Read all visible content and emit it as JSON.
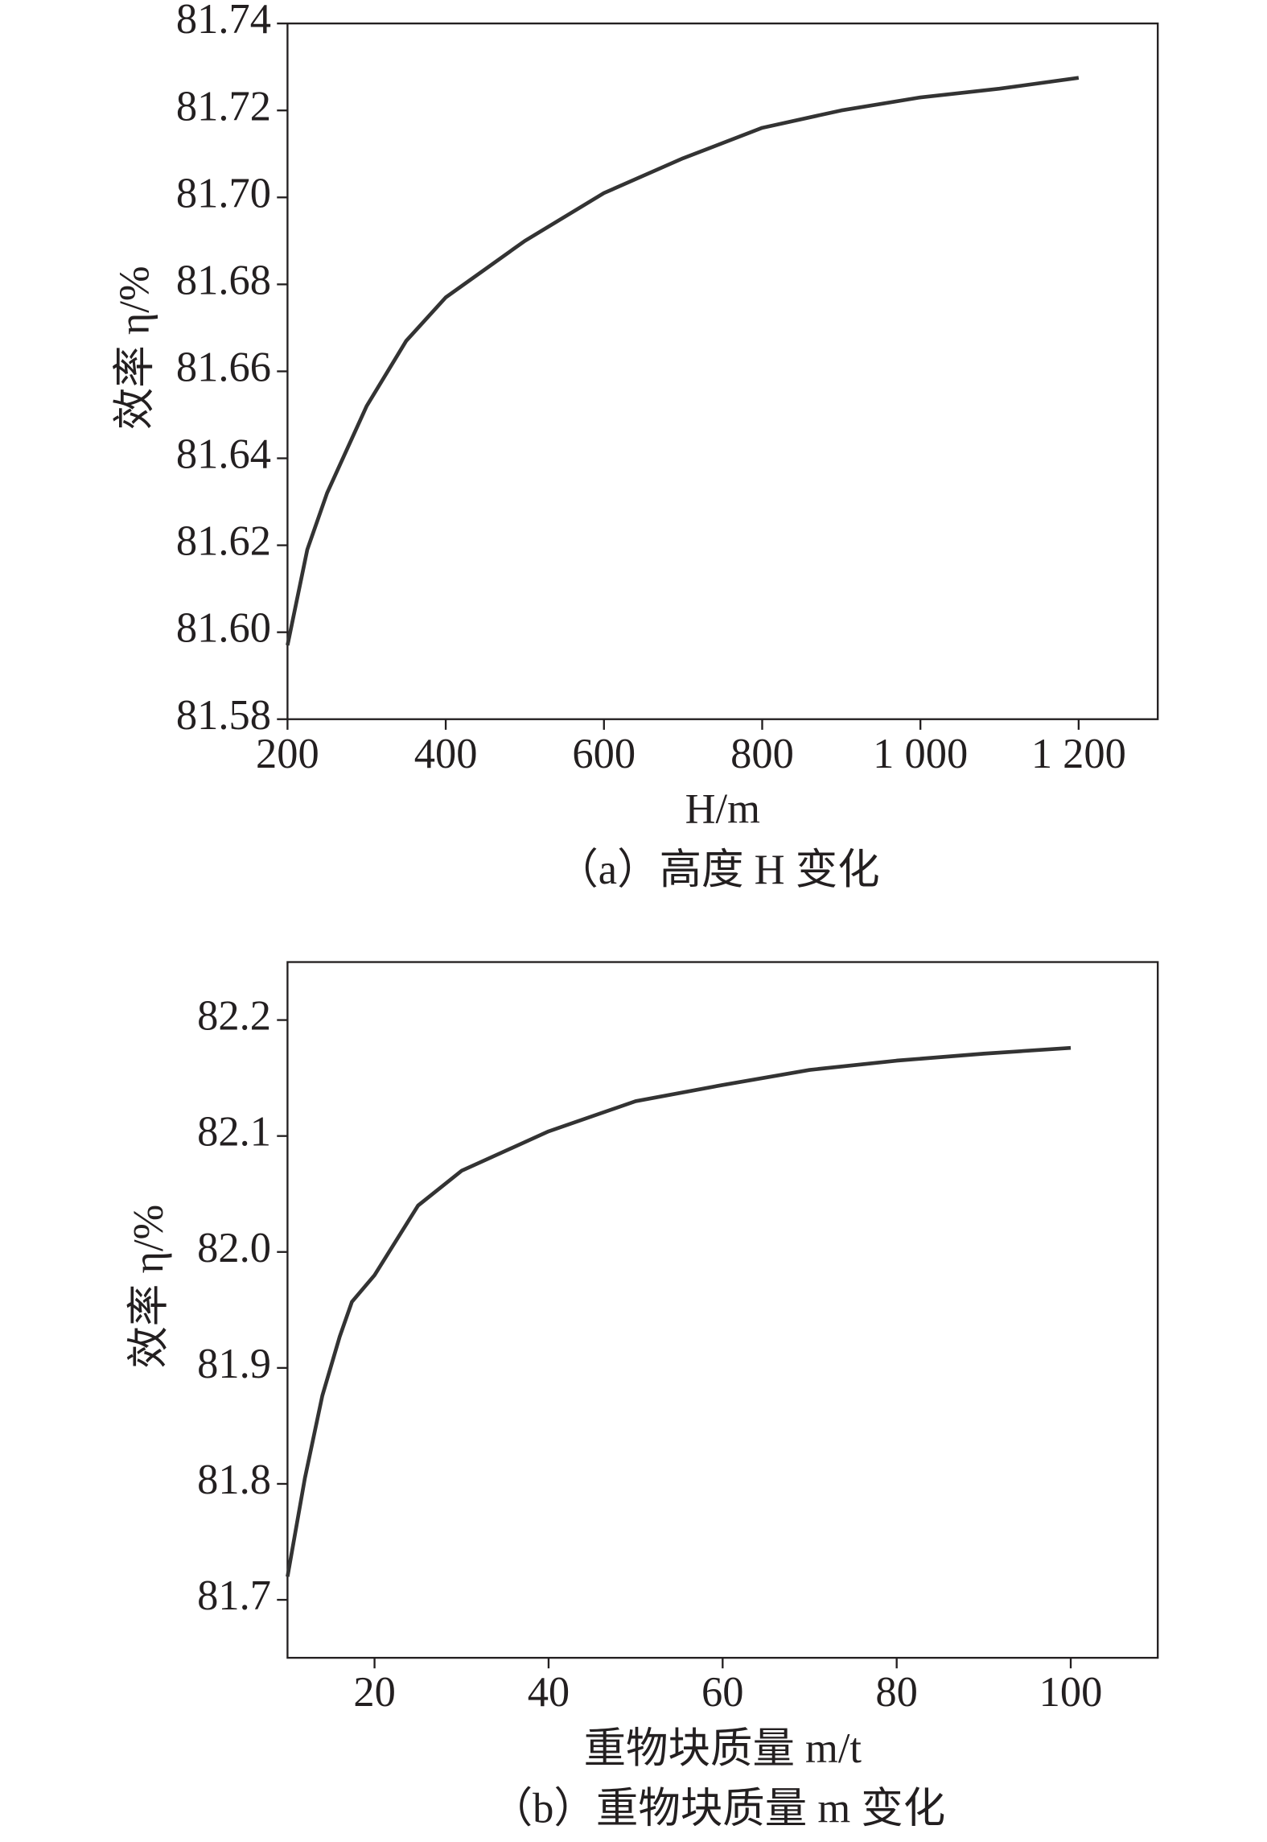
{
  "chart_data": [
    {
      "type": "line",
      "x_label": "H/m",
      "y_label": "效率 η/%",
      "caption": "（a）高度 H 变化",
      "x": [
        200,
        225,
        250,
        300,
        350,
        400,
        500,
        600,
        700,
        800,
        900,
        1000,
        1100,
        1200
      ],
      "series": [
        {
          "color": "#333333",
          "values": [
            81.597,
            81.619,
            81.632,
            81.652,
            81.667,
            81.677,
            81.69,
            81.701,
            81.709,
            81.716,
            81.72,
            81.723,
            81.725,
            81.7275
          ]
        }
      ],
      "xlim": [
        200,
        1300
      ],
      "ylim": [
        81.58,
        81.74
      ],
      "xticks": [
        200,
        400,
        600,
        800,
        {
          "value": 1000,
          "label": "1 000"
        },
        {
          "value": 1200,
          "label": "1 200"
        }
      ],
      "yticks": [
        {
          "value": 81.58,
          "label": "81.58"
        },
        {
          "value": 81.6,
          "label": "81.60"
        },
        {
          "value": 81.62,
          "label": "81.62"
        },
        {
          "value": 81.64,
          "label": "81.64"
        },
        {
          "value": 81.66,
          "label": "81.66"
        },
        {
          "value": 81.68,
          "label": "81.68"
        },
        {
          "value": 81.7,
          "label": "81.70"
        },
        {
          "value": 81.72,
          "label": "81.72"
        },
        {
          "value": 81.74,
          "label": "81.74"
        }
      ]
    },
    {
      "type": "line",
      "x_label": "重物块质量 m/t",
      "y_label": "效率 η/%",
      "caption": "（b）重物块质量 m 变化",
      "x": [
        10,
        12,
        14,
        16,
        17.4,
        20,
        25,
        30,
        40,
        50,
        60,
        70,
        80,
        90,
        100
      ],
      "series": [
        {
          "color": "#333333",
          "values": [
            81.72,
            81.805,
            81.876,
            81.927,
            81.957,
            81.98,
            82.04,
            82.07,
            82.104,
            82.13,
            82.144,
            82.157,
            82.165,
            82.171,
            82.176
          ]
        }
      ],
      "xlim": [
        10,
        110
      ],
      "ylim": [
        81.65,
        82.25
      ],
      "xticks": [
        20,
        40,
        60,
        80,
        100
      ],
      "yticks": [
        81.7,
        81.8,
        81.9,
        {
          "value": 82,
          "label": "82.0"
        },
        82.1,
        82.2
      ]
    }
  ]
}
